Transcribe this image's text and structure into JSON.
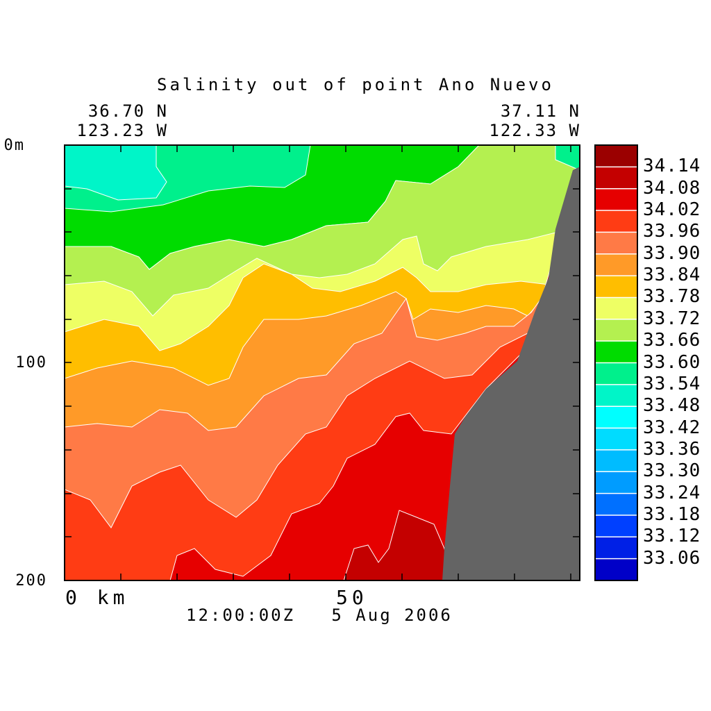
{
  "chart_data": {
    "type": "heatmap",
    "title": "Salinity out of point Ano Nuevo",
    "corner_left": {
      "lat": "36.70 N",
      "lon": "123.23 W"
    },
    "corner_right": {
      "lat": "37.11 N",
      "lon": "122.33 W"
    },
    "xaxis": {
      "ticks": [
        "0 km",
        "50"
      ],
      "range_km": [
        0,
        91
      ]
    },
    "yaxis": {
      "ticks": [
        "0m",
        "100",
        "200"
      ],
      "range_m": [
        0,
        200
      ],
      "inverted": true
    },
    "timestamp": "12:00:00Z   5 Aug 2006",
    "legend": {
      "placement": "right",
      "levels": [
        "34.14",
        "34.08",
        "34.02",
        "33.96",
        "33.90",
        "33.84",
        "33.78",
        "33.72",
        "33.66",
        "33.60",
        "33.54",
        "33.48",
        "33.42",
        "33.36",
        "33.30",
        "33.24",
        "33.18",
        "33.12",
        "33.06"
      ],
      "colors": [
        "#9b0000",
        "#c40000",
        "#e60000",
        "#ff3c14",
        "#ff7a46",
        "#ff9a28",
        "#ffbe00",
        "#eeff64",
        "#b4f050",
        "#00dc00",
        "#00f08c",
        "#00f5c8",
        "#00ffff",
        "#00dcff",
        "#00bcff",
        "#009cff",
        "#0070ff",
        "#0040ff",
        "#0020e6",
        "#0000c8"
      ]
    },
    "bands": {
      "s3354_3360": "#00f08c",
      "s3348_3354": "#00f5c8",
      "s3360_3366": "#00dc00",
      "s3366_3372": "#b4f050",
      "s3372_3378": "#eeff64",
      "s3378_3384": "#ffbe00",
      "s3384_3390": "#ff9a28",
      "s3390_3396": "#ff7a46",
      "s3396_3402": "#ff3c14",
      "s3402_3408": "#e60000",
      "s3408_3414": "#c40000",
      "land": "#646464"
    }
  }
}
